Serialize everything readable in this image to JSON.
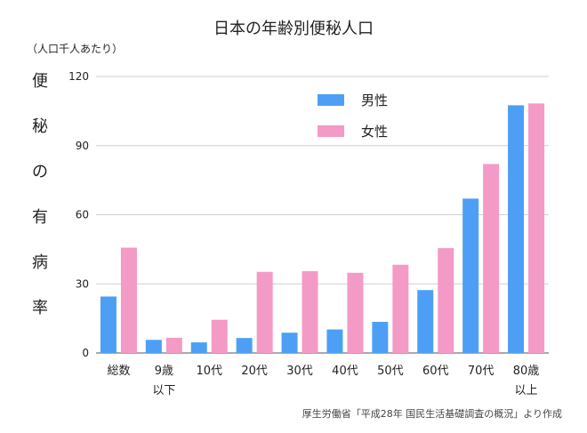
{
  "chart_data": {
    "type": "bar",
    "title": "日本の年齢別便秘人口",
    "unit_label": "（人口千人あたり）",
    "ylabel": "便秘の有病率",
    "xlabel": "",
    "categories": [
      "総数",
      "9歳\n以下",
      "10代",
      "20代",
      "30代",
      "40代",
      "50代",
      "60代",
      "70代",
      "80歳\n以上"
    ],
    "series": [
      {
        "name": "男性",
        "color": "#4d9ff5",
        "values": [
          24.5,
          5.7,
          4.6,
          6.5,
          8.8,
          10.2,
          13.5,
          27.3,
          67,
          107.5
        ]
      },
      {
        "name": "女性",
        "color": "#f39ac7",
        "values": [
          45.7,
          6.6,
          14.4,
          35.2,
          35.5,
          34.8,
          38.3,
          45.5,
          82,
          108.3
        ]
      }
    ],
    "ylim": [
      0,
      120
    ],
    "yticks": [
      0,
      30,
      60,
      90,
      120
    ],
    "grid": true,
    "legend": "top-right",
    "source": "厚生労働省「平成28年 国民生活基礎調査の概況」より作成"
  }
}
